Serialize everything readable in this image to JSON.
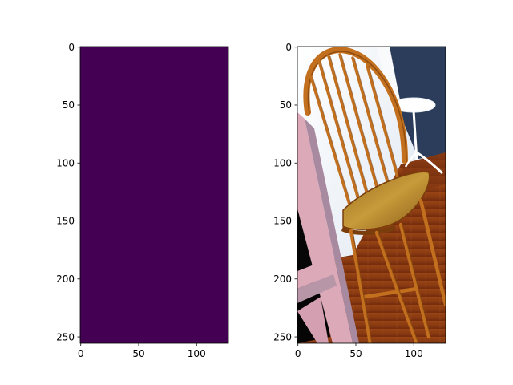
{
  "figure": {
    "background": "#ffffff"
  },
  "chart_data": [
    {
      "type": "heatmap",
      "title": "",
      "xlabel": "",
      "ylabel": "",
      "image_shape": [
        256,
        128
      ],
      "xlim": [
        -0.5,
        127.5
      ],
      "ylim": [
        255.5,
        -0.5
      ],
      "xticks": [
        0,
        50,
        100
      ],
      "yticks": [
        0,
        50,
        100,
        150,
        200,
        250
      ],
      "xtick_labels": [
        "0",
        "50",
        "100"
      ],
      "ytick_labels": [
        "0",
        "50",
        "100",
        "150",
        "200",
        "250"
      ],
      "grid": false,
      "values": "uniform",
      "fill_color": "#440154",
      "colormap": "viridis"
    },
    {
      "type": "image",
      "title": "",
      "xlabel": "",
      "ylabel": "",
      "image_shape": [
        256,
        128
      ],
      "xlim": [
        -0.5,
        127.5
      ],
      "ylim": [
        255.5,
        -0.5
      ],
      "xticks": [
        0,
        50,
        100
      ],
      "yticks": [
        0,
        50,
        100,
        150,
        200,
        250
      ],
      "xtick_labels": [
        "0",
        "50",
        "100"
      ],
      "ytick_labels": [
        "0",
        "50",
        "100",
        "150",
        "200",
        "250"
      ],
      "grid": false,
      "content": "RGB photo of wooden spindle-back chair",
      "colors": {
        "floor": "#8e3b12",
        "floor_dark": "#6e2c0c",
        "wall_white": "#f3f6fa",
        "wall_blue": "#dde6f1",
        "dark_panel": "#2a3a55",
        "wood": "#c2701e",
        "wood_dark": "#7a3e0c",
        "seat": "#b88832",
        "pink_frame": "#dba9b8",
        "pink_shadow": "#a88aa0",
        "black": "#080808",
        "table_white": "#ffffff"
      }
    }
  ]
}
